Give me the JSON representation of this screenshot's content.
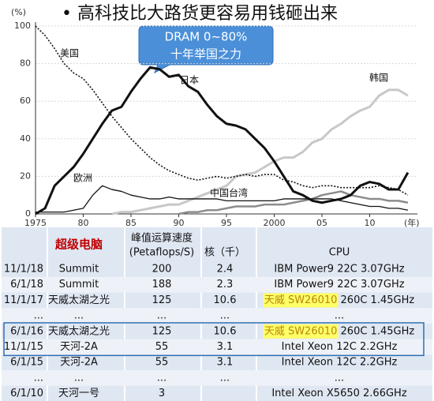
{
  "title": "• 高科技比大路货更容易用钱砸出来",
  "chart_data": {
    "type": "line",
    "ylabel": "(%)",
    "xlabel": "(年)",
    "annotation": [
      "DRAM 0~80%",
      "十年举国之力"
    ],
    "x": [
      1975,
      1976,
      1977,
      1978,
      1979,
      1980,
      1981,
      1982,
      1983,
      1984,
      1985,
      1986,
      1987,
      1988,
      1989,
      1990,
      1991,
      1992,
      1993,
      1994,
      1995,
      1996,
      1997,
      1998,
      1999,
      2000,
      2001,
      2002,
      2003,
      2004,
      2005,
      2006,
      2007,
      2008,
      2009,
      2010,
      2011,
      2012,
      2013,
      2014
    ],
    "xlim": [
      1975,
      2015
    ],
    "xticks": [
      1975,
      {
        "value": 1980,
        "label": "80"
      },
      {
        "value": 1985,
        "label": "85"
      },
      {
        "value": 1990,
        "label": "90"
      },
      {
        "value": 1995,
        "label": "95"
      },
      2000,
      {
        "value": 2005,
        "label": "05"
      },
      {
        "value": 2010,
        "label": "10"
      }
    ],
    "ylim": [
      0,
      100
    ],
    "yticks": [
      0,
      20,
      40,
      60,
      80,
      100
    ],
    "grid": true,
    "series": [
      {
        "name": "美国",
        "color": "#111111",
        "values": [
          100,
          95,
          88,
          80,
          75,
          72,
          66,
          59,
          52,
          46,
          40,
          35,
          30,
          26,
          23,
          21,
          19,
          18,
          19,
          20,
          19,
          20,
          21,
          20,
          21,
          21,
          18,
          17,
          15,
          14,
          15,
          15,
          14,
          14,
          14,
          14,
          15,
          14,
          13,
          10
        ]
      },
      {
        "name": "日本",
        "color": "#111111",
        "values": [
          0,
          3,
          15,
          20,
          25,
          32,
          40,
          48,
          55,
          57,
          65,
          72,
          78,
          77,
          73,
          74,
          68,
          65,
          58,
          52,
          48,
          47,
          45,
          40,
          35,
          28,
          20,
          12,
          10,
          7,
          6,
          7,
          8,
          10,
          15,
          17,
          16,
          13,
          13,
          22
        ]
      },
      {
        "name": "欧洲",
        "color": "#111111",
        "values": [
          1,
          1,
          1,
          1,
          2,
          3,
          10,
          15,
          13,
          12,
          10,
          9,
          8,
          8,
          9,
          8,
          8,
          8,
          8,
          8,
          7,
          7,
          7,
          7,
          7,
          7,
          8,
          8,
          8,
          8,
          8,
          8,
          7,
          6,
          5,
          4,
          4,
          3,
          3,
          2
        ]
      },
      {
        "name": "韩国",
        "color": "#c8c8c8",
        "values": [
          null,
          null,
          null,
          null,
          null,
          null,
          null,
          null,
          0,
          1,
          1,
          2,
          3,
          4,
          5,
          5,
          7,
          9,
          11,
          13,
          15,
          20,
          21,
          22,
          25,
          28,
          30,
          30,
          33,
          38,
          40,
          45,
          48,
          52,
          55,
          57,
          63,
          66,
          66,
          63
        ]
      },
      {
        "name": "中国台湾",
        "color": "#8c8c8c",
        "values": [
          null,
          null,
          null,
          null,
          null,
          null,
          null,
          null,
          null,
          null,
          null,
          null,
          null,
          null,
          null,
          0,
          1,
          1,
          2,
          2,
          3,
          4,
          4,
          4,
          5,
          5,
          5,
          6,
          7,
          8,
          10,
          11,
          12,
          10,
          9,
          8,
          8,
          7,
          7,
          6
        ]
      }
    ]
  },
  "table": {
    "header": [
      "超级电脑",
      "峰值运算速度",
      "(Petaflops/S)",
      "核（千）",
      "CPU"
    ],
    "rows": [
      {
        "date": "11/1/18",
        "name": "Summit",
        "peak": "200",
        "cores": "2.4",
        "cpu": "IBM Power9 22C 3.07GHz"
      },
      {
        "date": "6/1/18",
        "name": "Summit",
        "peak": "188",
        "cores": "2.3",
        "cpu": "IBM Power9 22C 3.07GHz"
      },
      {
        "date": "11/1/17",
        "name": "天威太湖之光",
        "peak": "125",
        "cores": "10.6",
        "cpu_mark": "天威 SW26010",
        "cpu": " 260C 1.45GHz"
      },
      {
        "date": "...",
        "name": "...",
        "peak": "...",
        "cores": "...",
        "cpu": "..."
      },
      {
        "date": "6/1/16",
        "name": "天威太湖之光",
        "peak": "125",
        "cores": "10.6",
        "cpu_mark": "天威 SW26010",
        "cpu": " 260C 1.45GHz"
      },
      {
        "date": "11/1/15",
        "name": "天河-2A",
        "peak": "55",
        "cores": "3.1",
        "cpu": "Intel Xeon 12C 2.2GHz"
      },
      {
        "date": "6/1/15",
        "name": "天河-2A",
        "peak": "55",
        "cores": "3.1",
        "cpu": "Intel Xeon 12C 2.2GHz"
      },
      {
        "date": "...",
        "name": "...",
        "peak": "...",
        "cores": "...",
        "cpu": "..."
      },
      {
        "date": "6/1/10",
        "name": "天河一号",
        "peak": "3",
        "cpu": "Intel Xeon X5650 2.66GHz"
      }
    ]
  }
}
